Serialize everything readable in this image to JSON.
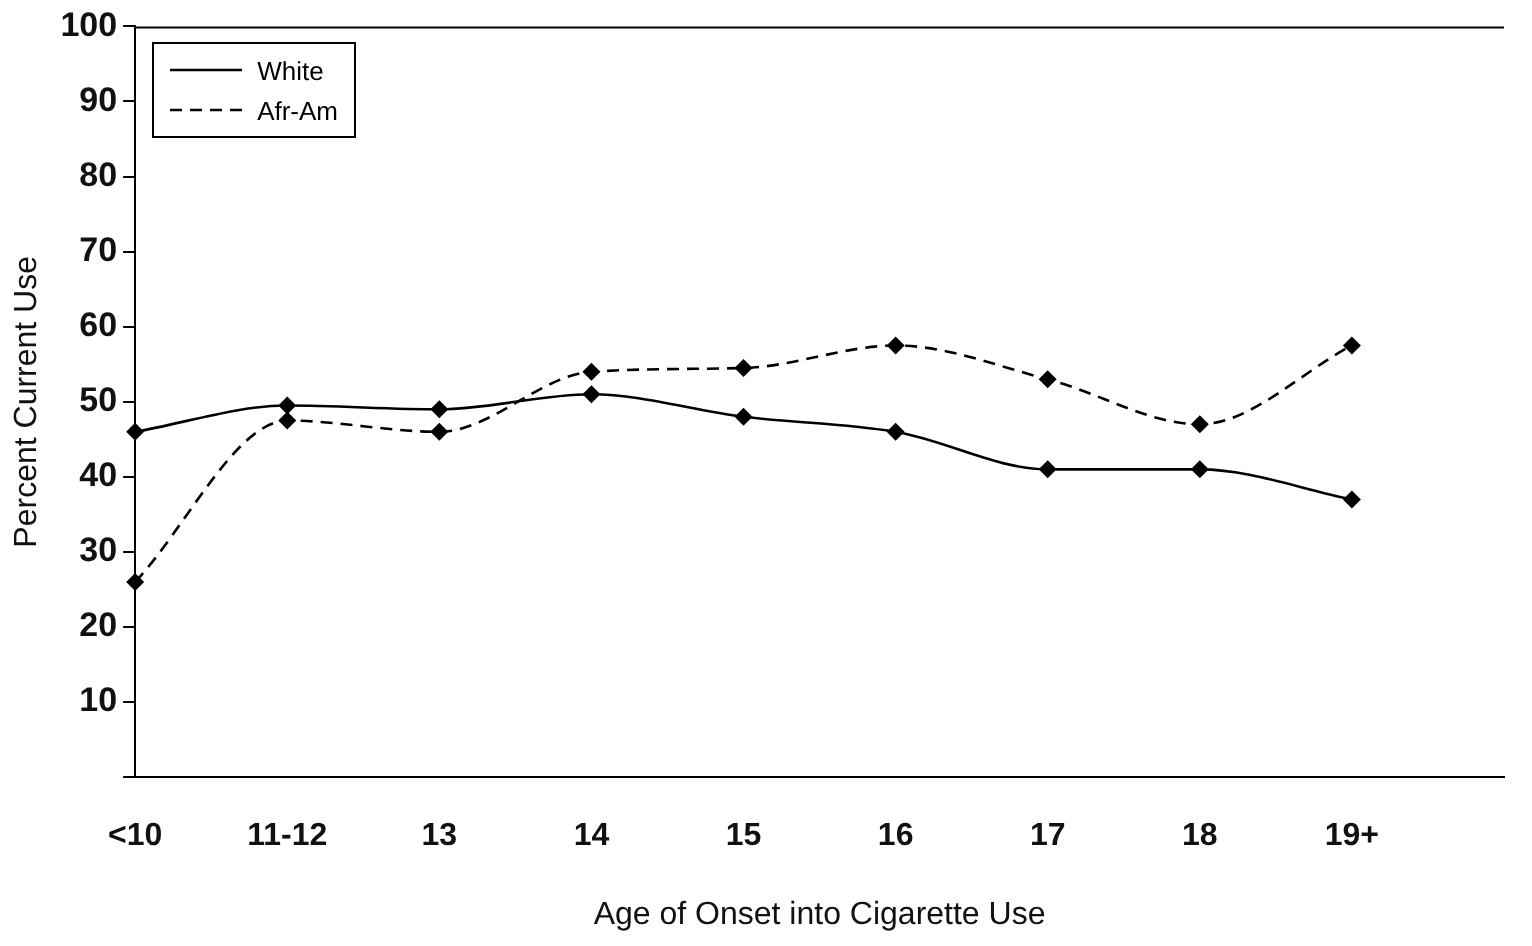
{
  "chart_data": {
    "type": "line",
    "xlabel": "Age of Onset into Cigarette Use",
    "ylabel": "Percent Current Use",
    "categories": [
      "<10",
      "11-12",
      "13",
      "14",
      "15",
      "16",
      "17",
      "18",
      "19+",
      null
    ],
    "series": [
      {
        "name": "White",
        "color": "#000000",
        "line_style": "solid",
        "values": [
          46,
          49.5,
          49,
          51,
          48,
          46,
          41,
          41,
          37,
          null
        ]
      },
      {
        "name": "Afr-Am",
        "color": "#000000",
        "line_style": "dashed",
        "values": [
          26,
          47.5,
          46,
          54,
          54.5,
          57.5,
          53,
          47,
          57.5,
          null
        ]
      }
    ],
    "ylim": [
      0,
      100
    ],
    "yticks": [
      {
        "value": 0,
        "label": null
      },
      10,
      20,
      30,
      40,
      50,
      60,
      70,
      80,
      90,
      100
    ],
    "grid": false,
    "legend": "top left",
    "marker": "diamond"
  }
}
